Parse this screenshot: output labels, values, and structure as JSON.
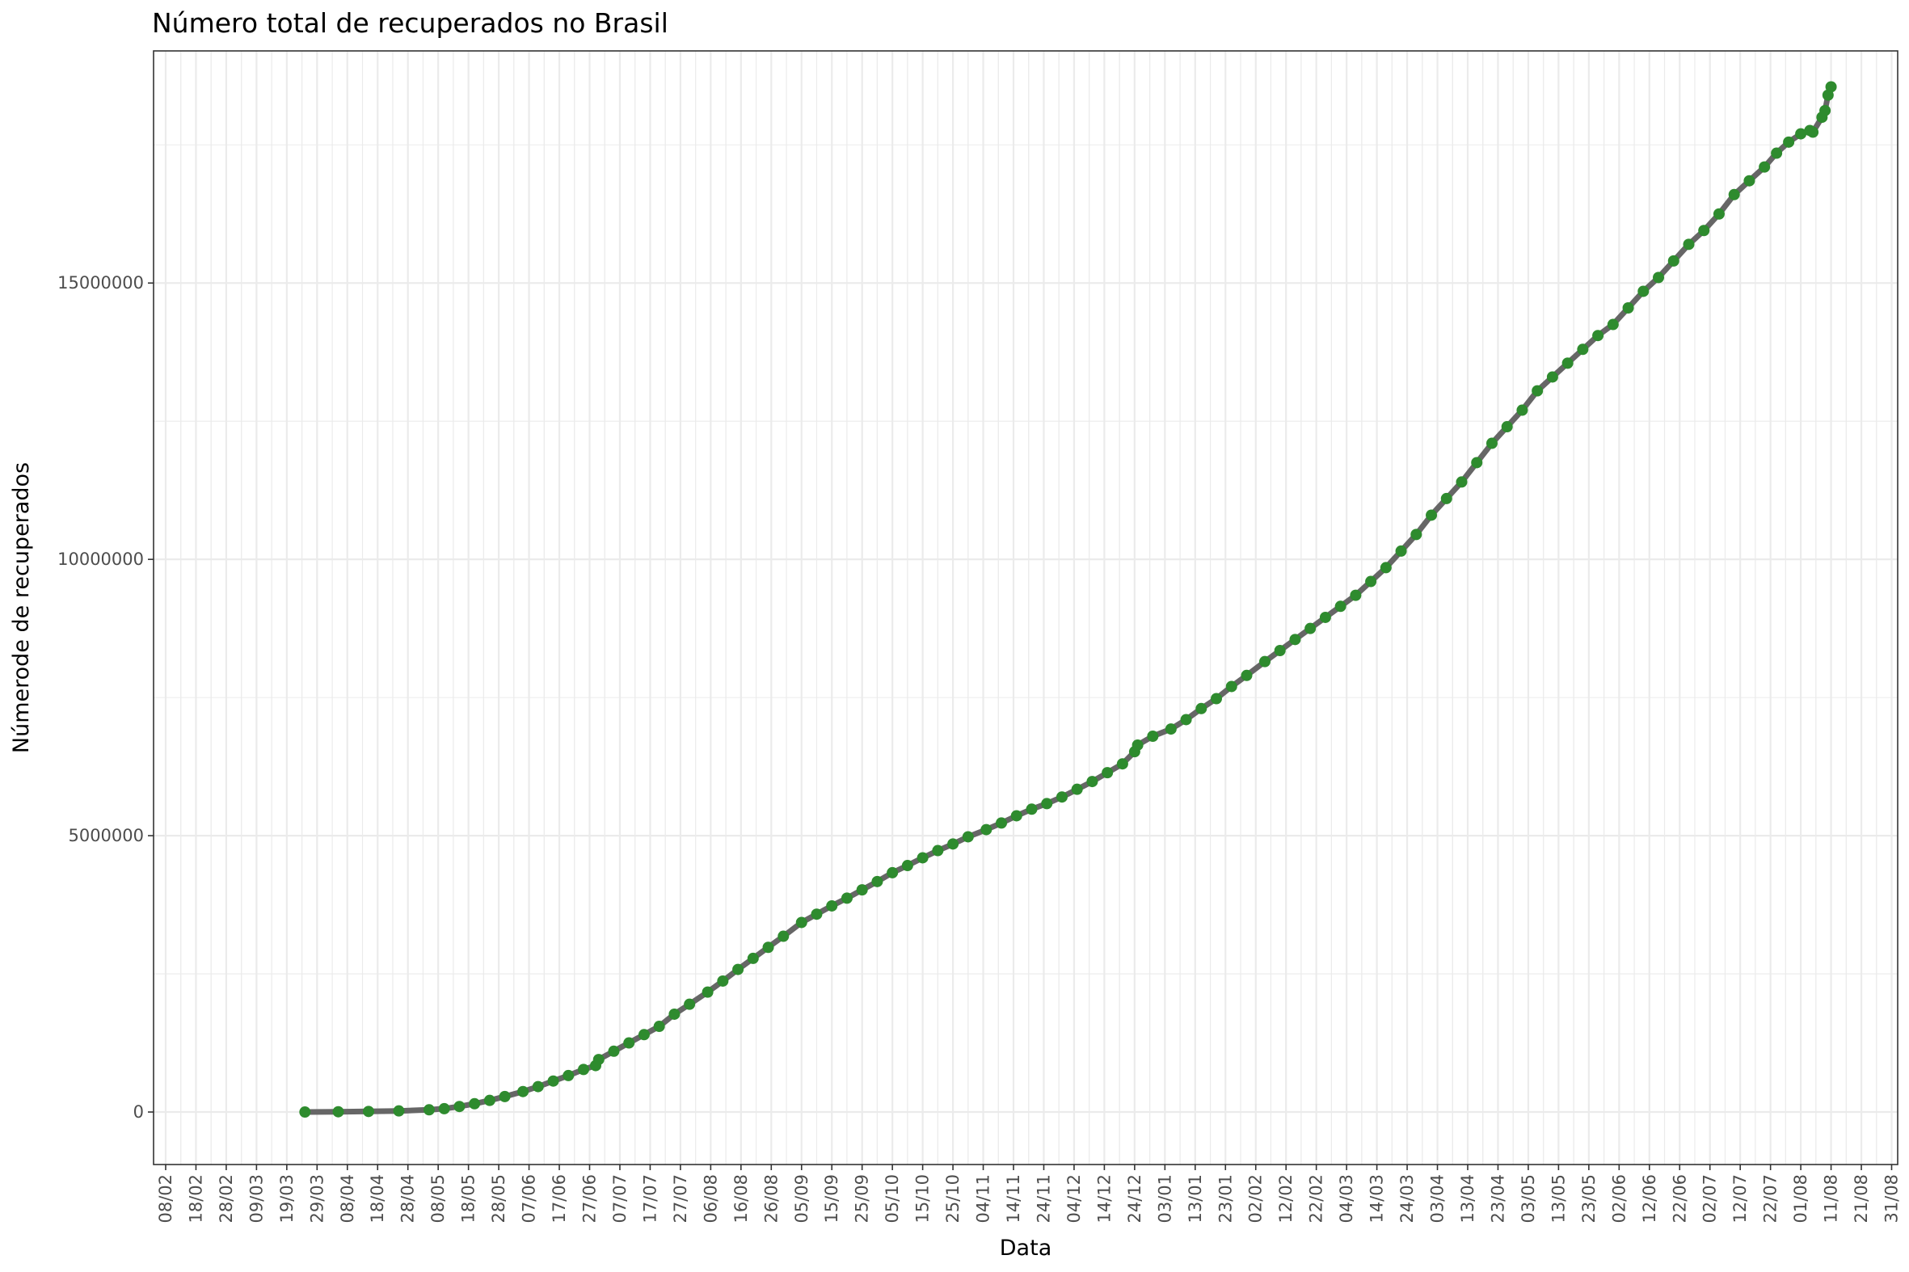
{
  "chart_data": {
    "type": "line",
    "title": "Número total de recuperados no Brasil",
    "xlabel": "Data",
    "ylabel": "Númerode de recuperados",
    "x_tick_labels": [
      "08/02",
      "18/02",
      "28/02",
      "09/03",
      "19/03",
      "29/03",
      "08/04",
      "18/04",
      "28/04",
      "08/05",
      "18/05",
      "28/05",
      "07/06",
      "17/06",
      "27/06",
      "07/07",
      "17/07",
      "27/07",
      "06/08",
      "16/08",
      "26/08",
      "05/09",
      "15/09",
      "25/09",
      "05/10",
      "15/10",
      "25/10",
      "04/11",
      "14/11",
      "24/11",
      "04/12",
      "14/12",
      "24/12",
      "03/01",
      "13/01",
      "23/01",
      "02/02",
      "12/02",
      "22/02",
      "04/03",
      "14/03",
      "24/03",
      "03/04",
      "13/04",
      "23/04",
      "03/05",
      "13/05",
      "23/05",
      "02/06",
      "12/06",
      "22/06",
      "02/07",
      "12/07",
      "22/07",
      "01/08",
      "11/08",
      "21/08",
      "31/08"
    ],
    "y_ticks": [
      0,
      5000000,
      10000000,
      15000000
    ],
    "y_tick_labels": [
      "0",
      "5000000",
      "10000000",
      "15000000"
    ],
    "xlim": [
      "2020-02-04",
      "2021-09-02"
    ],
    "ylim": [
      -950000,
      19200000
    ],
    "grid": true,
    "colors": {
      "line": "#666666",
      "points": "#2e8b2e",
      "grid": "#ebebeb",
      "panel_border": "#333333"
    },
    "series": [
      {
        "x": [
          "2020-03-25",
          "2020-04-05",
          "2020-04-15",
          "2020-04-25",
          "2020-05-05",
          "2020-05-10",
          "2020-05-15",
          "2020-05-20",
          "2020-05-25",
          "2020-05-30",
          "2020-06-05",
          "2020-06-10",
          "2020-06-15",
          "2020-06-20",
          "2020-06-25",
          "2020-06-29",
          "2020-06-30",
          "2020-07-05",
          "2020-07-10",
          "2020-07-15",
          "2020-07-20",
          "2020-07-25",
          "2020-07-30",
          "2020-08-05",
          "2020-08-10",
          "2020-08-15",
          "2020-08-20",
          "2020-08-25",
          "2020-08-30",
          "2020-09-05",
          "2020-09-10",
          "2020-09-15",
          "2020-09-20",
          "2020-09-25",
          "2020-09-30",
          "2020-10-05",
          "2020-10-10",
          "2020-10-15",
          "2020-10-20",
          "2020-10-25",
          "2020-10-30",
          "2020-11-05",
          "2020-11-10",
          "2020-11-15",
          "2020-11-20",
          "2020-11-25",
          "2020-11-30",
          "2020-12-05",
          "2020-12-10",
          "2020-12-15",
          "2020-12-20",
          "2020-12-24",
          "2020-12-25",
          "2020-12-30",
          "2021-01-05",
          "2021-01-10",
          "2021-01-15",
          "2021-01-20",
          "2021-01-25",
          "2021-01-30",
          "2021-02-05",
          "2021-02-10",
          "2021-02-15",
          "2021-02-20",
          "2021-02-25",
          "2021-03-02",
          "2021-03-07",
          "2021-03-12",
          "2021-03-17",
          "2021-03-22",
          "2021-03-27",
          "2021-04-01",
          "2021-04-06",
          "2021-04-11",
          "2021-04-16",
          "2021-04-21",
          "2021-04-26",
          "2021-05-01",
          "2021-05-06",
          "2021-05-11",
          "2021-05-16",
          "2021-05-21",
          "2021-05-26",
          "2021-05-31",
          "2021-06-05",
          "2021-06-10",
          "2021-06-15",
          "2021-06-20",
          "2021-06-25",
          "2021-06-30",
          "2021-07-05",
          "2021-07-10",
          "2021-07-15",
          "2021-07-20",
          "2021-07-24",
          "2021-07-28",
          "2021-08-01",
          "2021-08-04",
          "2021-08-05",
          "2021-08-08",
          "2021-08-09",
          "2021-08-10",
          "2021-08-11"
        ],
        "y": [
          0,
          5000,
          10000,
          20000,
          40000,
          60000,
          100000,
          150000,
          210000,
          280000,
          370000,
          460000,
          560000,
          660000,
          770000,
          840000,
          950000,
          1100000,
          1250000,
          1400000,
          1550000,
          1770000,
          1950000,
          2170000,
          2370000,
          2580000,
          2780000,
          2980000,
          3180000,
          3430000,
          3580000,
          3730000,
          3870000,
          4020000,
          4170000,
          4330000,
          4460000,
          4600000,
          4730000,
          4850000,
          4980000,
          5110000,
          5230000,
          5360000,
          5480000,
          5580000,
          5700000,
          5840000,
          5980000,
          6140000,
          6300000,
          6520000,
          6640000,
          6800000,
          6930000,
          7100000,
          7300000,
          7480000,
          7700000,
          7900000,
          8150000,
          8350000,
          8550000,
          8750000,
          8950000,
          9150000,
          9350000,
          9600000,
          9850000,
          10150000,
          10450000,
          10800000,
          11100000,
          11400000,
          11750000,
          12100000,
          12400000,
          12700000,
          13050000,
          13300000,
          13550000,
          13800000,
          14050000,
          14250000,
          14550000,
          14850000,
          15100000,
          15400000,
          15700000,
          15950000,
          16250000,
          16600000,
          16850000,
          17100000,
          17350000,
          17550000,
          17700000,
          17760000,
          17730000,
          18000000,
          18120000,
          18400000,
          18550000
        ]
      }
    ]
  }
}
